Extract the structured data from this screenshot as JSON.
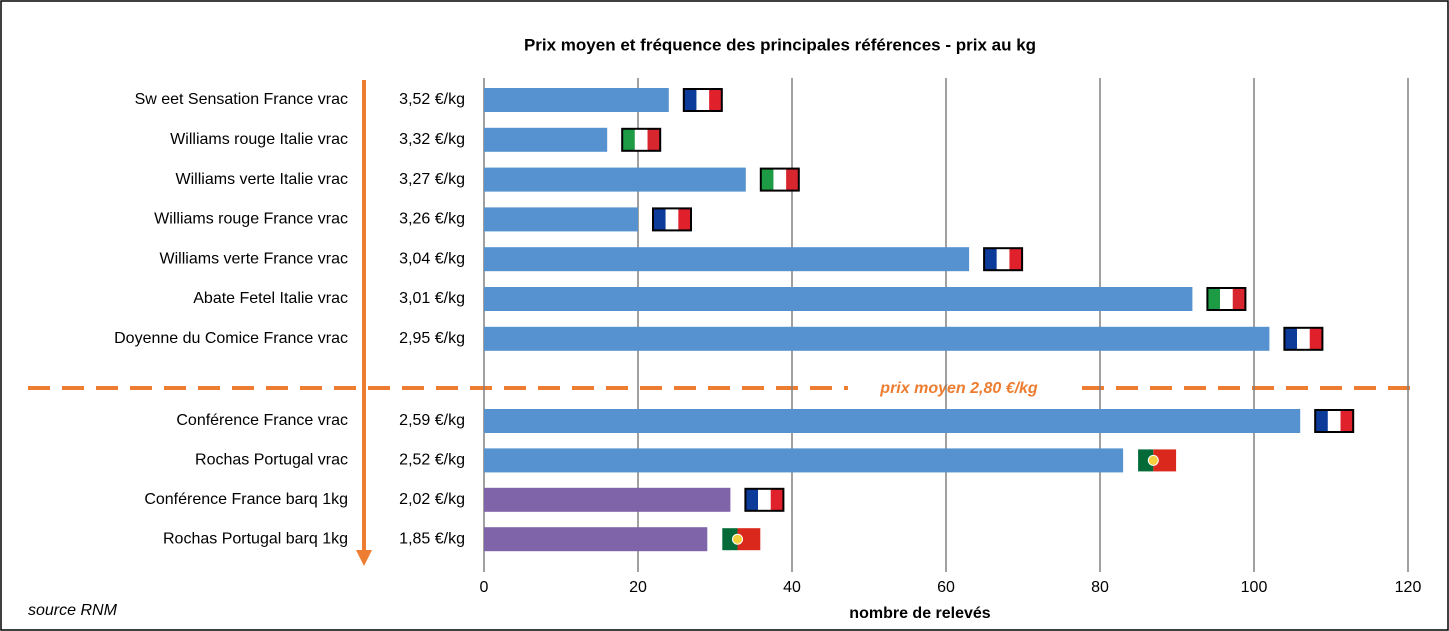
{
  "chart_data": {
    "type": "barh",
    "title": "Prix moyen et fréquence des principales références - prix au kg",
    "categories": [
      "Sw eet Sensation France vrac",
      "Williams  rouge Italie vrac",
      "Williams  verte Italie vrac",
      "Williams  rouge France vrac",
      "Williams  verte France vrac",
      "Abate Fetel Italie vrac",
      "Doyenne du Comice  France vrac",
      "Conférence France vrac",
      "Rochas Portugal vrac",
      "Conférence France barq 1kg",
      "Rochas Portugal barq 1kg"
    ],
    "price_labels": [
      "3,52 €/kg",
      "3,32 €/kg",
      "3,27 €/kg",
      "3,26 €/kg",
      "3,04 €/kg",
      "3,01 €/kg",
      "2,95 €/kg",
      "2,59 €/kg",
      "2,52 €/kg",
      "2,02 €/kg",
      "1,85 €/kg"
    ],
    "values": [
      24,
      16,
      34,
      20,
      63,
      92,
      102,
      106,
      83,
      32,
      29
    ],
    "colors": [
      "#5592cf",
      "#5592cf",
      "#5592cf",
      "#5592cf",
      "#5592cf",
      "#5592cf",
      "#5592cf",
      "#5592cf",
      "#5592cf",
      "#8064a9",
      "#8064a9"
    ],
    "flags": [
      "fr",
      "it",
      "it",
      "fr",
      "fr",
      "it",
      "fr",
      "fr",
      "pt",
      "fr",
      "pt"
    ],
    "xlim": [
      0,
      120
    ],
    "xticks": [
      0,
      20,
      40,
      60,
      80,
      100,
      120
    ],
    "grid": true,
    "xlabel": "nombre de relevés",
    "annotation": "prix moyen 2,80 €/kg",
    "source": "source RNM"
  }
}
